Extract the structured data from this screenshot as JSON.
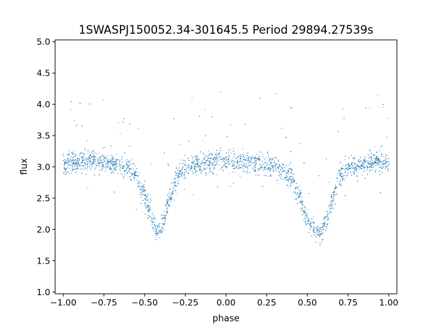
{
  "chart_data": {
    "type": "scatter",
    "title": "1SWASPJ150052.34-301645.5 Period 29894.27539s",
    "xlabel": "phase",
    "ylabel": "flux",
    "xlim": [
      -1.05,
      1.05
    ],
    "ylim": [
      0.97,
      5.03
    ],
    "xticks": [
      -1.0,
      -0.75,
      -0.5,
      -0.25,
      0.0,
      0.25,
      0.5,
      0.75,
      1.0
    ],
    "xtick_labels": [
      "−1.00",
      "−0.75",
      "−0.50",
      "−0.25",
      "0.00",
      "0.25",
      "0.50",
      "0.75",
      "1.00"
    ],
    "yticks": [
      1.0,
      1.5,
      2.0,
      2.5,
      3.0,
      3.5,
      4.0,
      4.5,
      5.0
    ],
    "ytick_labels": [
      "1.0",
      "1.5",
      "2.0",
      "2.5",
      "3.0",
      "3.5",
      "4.0",
      "4.5",
      "5.0"
    ],
    "grid": false,
    "marker_color": "#1f77b4",
    "series": [
      {
        "points_summary": {
          "baseline_flux": 3.05,
          "primary_minimum": {
            "phase": -0.42,
            "flux": 1.95
          },
          "primary_minimum_repeat": {
            "phase": 0.58,
            "flux": 1.95
          },
          "eclipse_half_width_phase": 0.1,
          "phase_range": [
            -1.0,
            1.0
          ]
        },
        "profile": {
          "x": [
            -1.0,
            -0.9,
            -0.8,
            -0.7,
            -0.6,
            -0.55,
            -0.5,
            -0.45,
            -0.42,
            -0.38,
            -0.35,
            -0.3,
            -0.25,
            -0.15,
            -0.05,
            0.0,
            0.1,
            0.2,
            0.3,
            0.4,
            0.45,
            0.5,
            0.55,
            0.58,
            0.62,
            0.65,
            0.7,
            0.75,
            0.85,
            0.95,
            1.0
          ],
          "y": [
            3.05,
            3.1,
            3.1,
            3.05,
            3.0,
            2.85,
            2.55,
            2.15,
            1.95,
            2.15,
            2.45,
            2.85,
            3.0,
            3.05,
            3.1,
            3.1,
            3.05,
            3.05,
            3.0,
            2.85,
            2.55,
            2.15,
            1.95,
            1.95,
            2.15,
            2.45,
            2.85,
            3.0,
            3.05,
            3.1,
            3.05
          ]
        }
      }
    ]
  }
}
